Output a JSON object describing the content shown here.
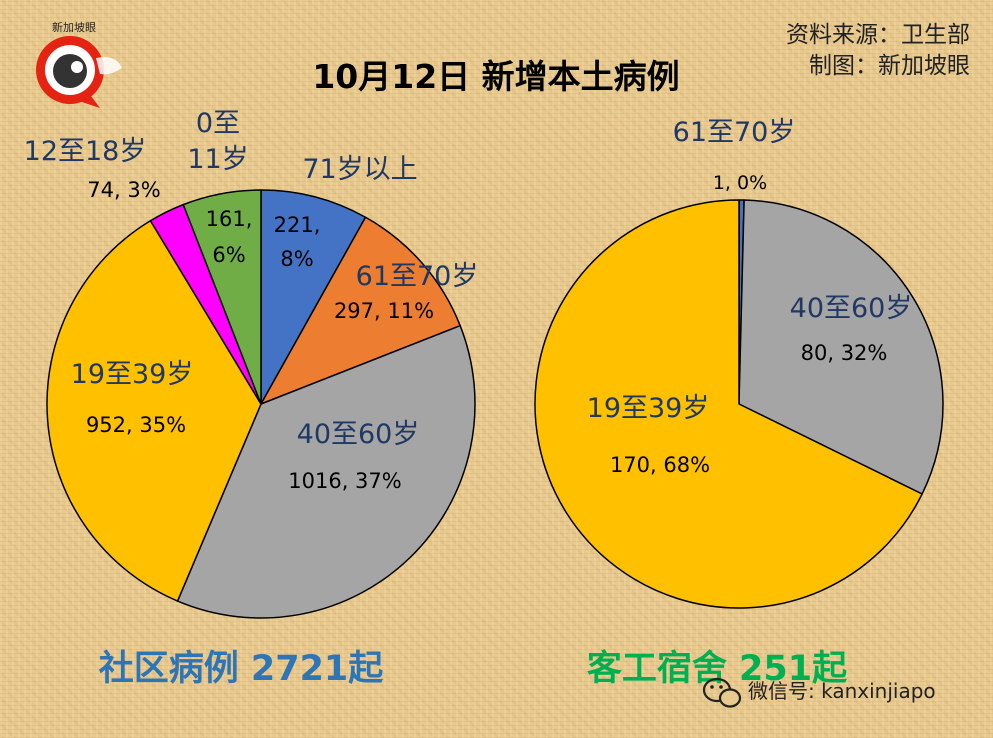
{
  "title": "10月12日 新增本土病例",
  "source_line": "资料来源：卫生部",
  "maker_line": "制图：新加坡眼",
  "logo_text": "新加坡眼",
  "watermark": "微信号: kanxinjiapo",
  "colors": {
    "blue": "#4472c4",
    "orange": "#ed7d31",
    "gray": "#a5a5a5",
    "yellow": "#ffc000",
    "magenta": "#ff00ff",
    "green": "#70ad47",
    "label_blue": "#1f3864",
    "caption_blue": "#2e75b6",
    "caption_green": "#00b050",
    "brand_red": "#e42313"
  },
  "chart_data": [
    {
      "type": "pie",
      "caption": "社区病例 2721起",
      "slices": [
        {
          "name": "71岁以上",
          "value": 221,
          "percent": "8%",
          "label": "221, 8%",
          "color": "#4472c4"
        },
        {
          "name": "61至70岁",
          "value": 297,
          "percent": "11%",
          "label": "297, 11%",
          "color": "#ed7d31"
        },
        {
          "name": "40至60岁",
          "value": 1016,
          "percent": "37%",
          "label": "1016, 37%",
          "color": "#a5a5a5"
        },
        {
          "name": "19至39岁",
          "value": 952,
          "percent": "35%",
          "label": "952, 35%",
          "color": "#ffc000"
        },
        {
          "name": "12至18岁",
          "value": 74,
          "percent": "3%",
          "label": "74, 3%",
          "color": "#ff00ff"
        },
        {
          "name": "0至11岁",
          "value": 161,
          "percent": "6%",
          "label": "161, 6%",
          "color": "#70ad47"
        }
      ]
    },
    {
      "type": "pie",
      "caption": "客工宿舍 251起",
      "slices": [
        {
          "name": "61至70岁",
          "value": 1,
          "percent": "0%",
          "label": "1, 0%",
          "color": "#4472c4"
        },
        {
          "name": "40至60岁",
          "value": 80,
          "percent": "32%",
          "label": "80, 32%",
          "color": "#a5a5a5"
        },
        {
          "name": "19至39岁",
          "value": 170,
          "percent": "68%",
          "label": "170, 68%",
          "color": "#ffc000"
        }
      ]
    }
  ]
}
